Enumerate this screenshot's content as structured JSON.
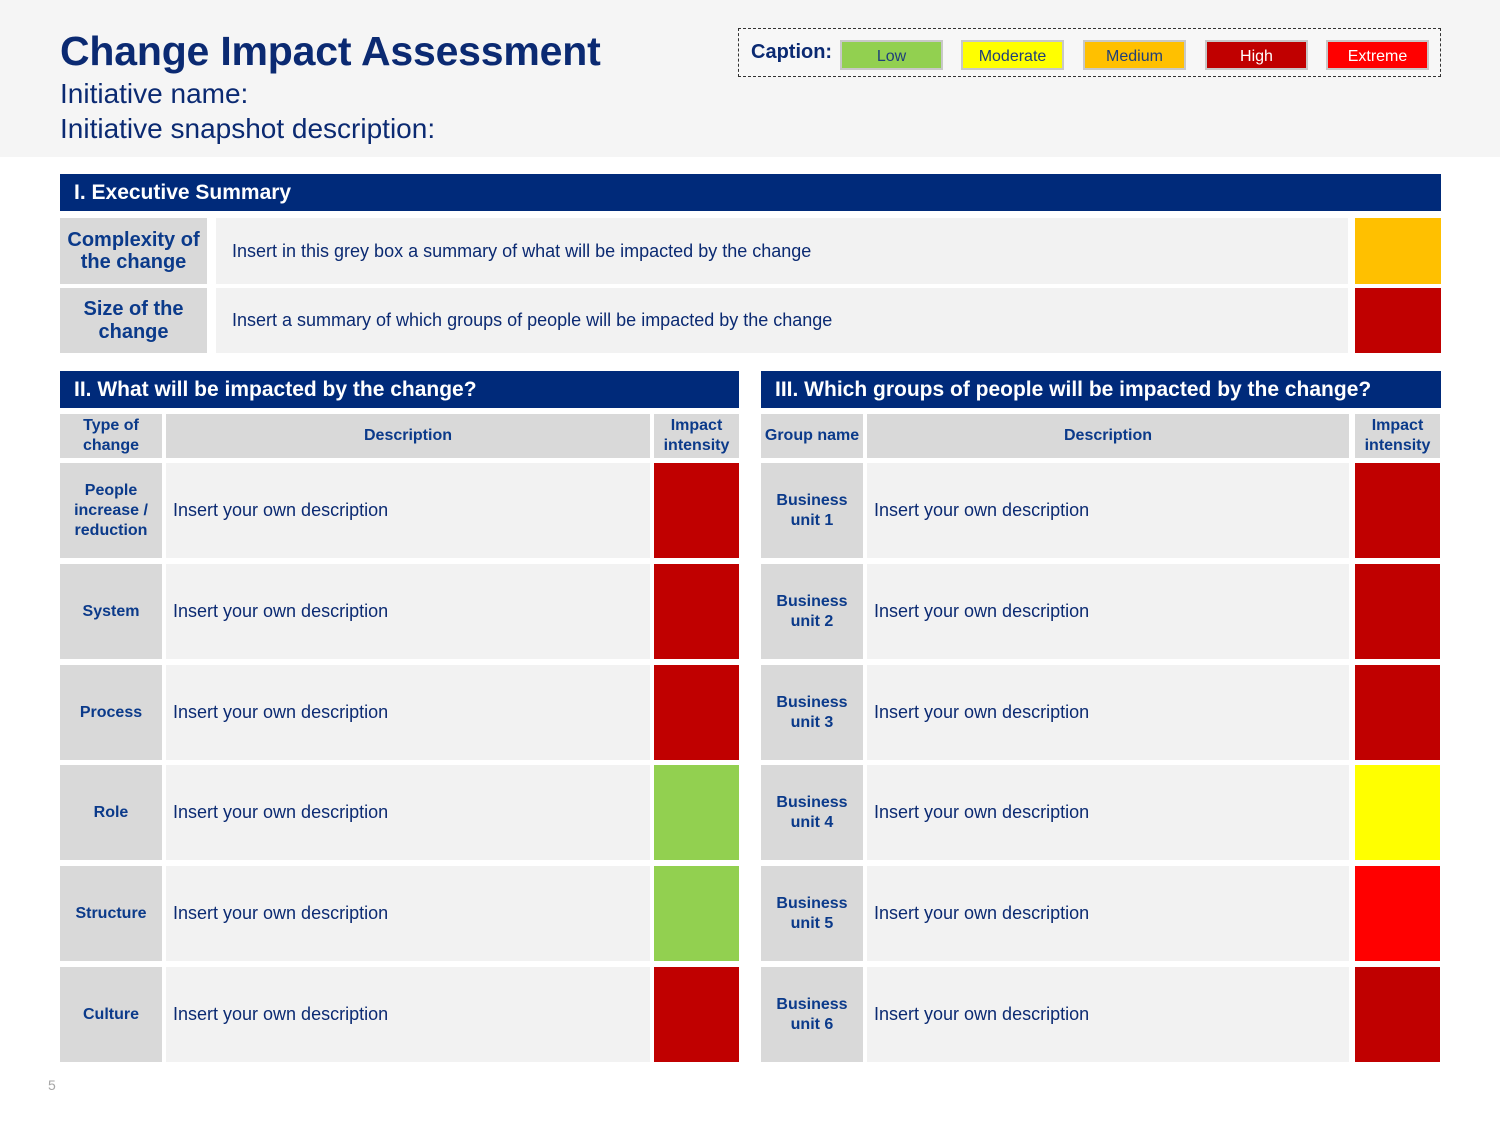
{
  "header": {
    "title": "Change Impact Assessment",
    "initiative_name": "Initiative name:",
    "initiative_snapshot": "Initiative snapshot description:"
  },
  "caption": {
    "label": "Caption:",
    "levels": [
      {
        "name": "Low",
        "color": "#92d050"
      },
      {
        "name": "Moderate",
        "color": "#ffff00"
      },
      {
        "name": "Medium",
        "color": "#ffc000"
      },
      {
        "name": "High",
        "color": "#c00000"
      },
      {
        "name": "Extreme",
        "color": "#ff0000"
      }
    ]
  },
  "executive_summary": {
    "title": "I. Executive Summary",
    "rows": [
      {
        "label": "Complexity of the change",
        "description": "Insert in this grey box a summary of what will be impacted by the change",
        "level": "Medium",
        "color": "#ffc000"
      },
      {
        "label": "Size of the change",
        "description": "Insert a summary of which groups of people will be impacted by the change",
        "level": "High",
        "color": "#c00000"
      }
    ]
  },
  "what_impacted": {
    "title": "II. What will be impacted by the change?",
    "columns": {
      "type": "Type of change",
      "description": "Description",
      "intensity": "Impact intensity"
    },
    "rows": [
      {
        "label": "People increase / reduction",
        "description": "Insert your own description",
        "level": "High",
        "color": "#c00000"
      },
      {
        "label": "System",
        "description": "Insert your own description",
        "level": "High",
        "color": "#c00000"
      },
      {
        "label": "Process",
        "description": "Insert your own description",
        "level": "High",
        "color": "#c00000"
      },
      {
        "label": "Role",
        "description": "Insert your own description",
        "level": "Low",
        "color": "#92d050"
      },
      {
        "label": "Structure",
        "description": "Insert your own description",
        "level": "Low",
        "color": "#92d050"
      },
      {
        "label": "Culture",
        "description": "Insert your own description",
        "level": "High",
        "color": "#c00000"
      }
    ]
  },
  "groups_impacted": {
    "title": "III. Which groups of people will be impacted by the change?",
    "columns": {
      "group": "Group name",
      "description": "Description",
      "intensity": "Impact intensity"
    },
    "rows": [
      {
        "label": "Business unit 1",
        "description": "Insert your own description",
        "level": "High",
        "color": "#c00000"
      },
      {
        "label": "Business unit 2",
        "description": "Insert your own description",
        "level": "High",
        "color": "#c00000"
      },
      {
        "label": "Business unit 3",
        "description": "Insert your own description",
        "level": "High",
        "color": "#c00000"
      },
      {
        "label": "Business unit 4",
        "description": "Insert your own description",
        "level": "Moderate",
        "color": "#ffff00"
      },
      {
        "label": "Business unit 5",
        "description": "Insert your own description",
        "level": "Extreme",
        "color": "#ff0000"
      },
      {
        "label": "Business unit 6",
        "description": "Insert your own description",
        "level": "High",
        "color": "#c00000"
      }
    ]
  },
  "footer": {
    "page_number": "5"
  }
}
